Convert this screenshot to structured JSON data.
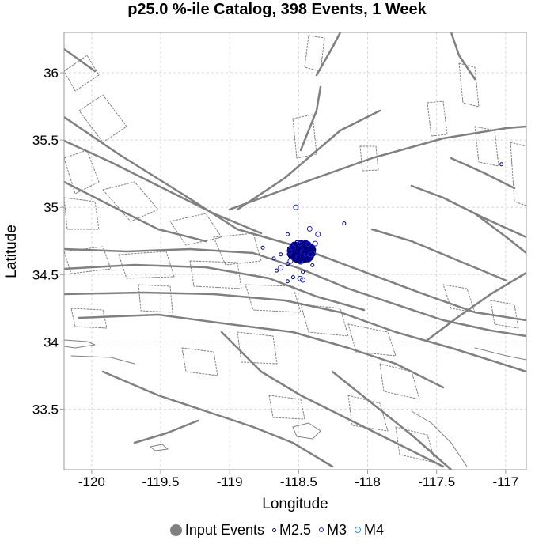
{
  "chart_data": {
    "type": "scatter",
    "title": "p25.0 %-ile Catalog, 398 Events, 1 Week",
    "xlabel": "Longitude",
    "ylabel": "Latitude",
    "xlim": [
      -120.2,
      -116.85
    ],
    "ylim": [
      33.05,
      36.3
    ],
    "xticks": [
      -120,
      -119.5,
      -119,
      -118.5,
      -118,
      -117.5,
      -117
    ],
    "xtick_labels": [
      "-120",
      "-119.5",
      "-119",
      "-118.5",
      "-118",
      "-117.5",
      "-117"
    ],
    "yticks": [
      33.5,
      34,
      34.5,
      35,
      35.5,
      36
    ],
    "ytick_labels": [
      "33.5",
      "34",
      "34.5",
      "35",
      "35.5",
      "36"
    ],
    "grid": true,
    "legend_position": "bottom",
    "legend": [
      {
        "label": "Input Events",
        "color": "#808080",
        "style": "filled"
      },
      {
        "label": "M2.5",
        "color": "#000080",
        "style": "ring-small"
      },
      {
        "label": "M3",
        "color": "#1e1ecc",
        "style": "ring-medium"
      },
      {
        "label": "M4",
        "color": "#2a8fe0",
        "style": "ring-large"
      }
    ],
    "colors": {
      "fault_trace": "#808080",
      "grid": "#d8d8d8",
      "m25": "#000080",
      "m3": "#1e1ecc",
      "m4": "#2a8fe0"
    },
    "cluster": {
      "center": [
        -118.48,
        34.67
      ],
      "count": 398
    },
    "outliers": [
      {
        "x": -118.52,
        "y": 35.0,
        "mag": 3.0
      },
      {
        "x": -118.17,
        "y": 34.88,
        "mag": 2.5
      },
      {
        "x": -117.03,
        "y": 35.32,
        "mag": 2.5
      },
      {
        "x": -118.42,
        "y": 34.84,
        "mag": 3.0
      },
      {
        "x": -118.36,
        "y": 34.8,
        "mag": 3.0
      },
      {
        "x": -118.76,
        "y": 34.7,
        "mag": 2.5
      },
      {
        "x": -118.68,
        "y": 34.62,
        "mag": 2.5
      },
      {
        "x": -118.63,
        "y": 34.55,
        "mag": 3.0
      },
      {
        "x": -118.66,
        "y": 34.53,
        "mag": 2.5
      },
      {
        "x": -118.49,
        "y": 34.47,
        "mag": 3.0
      },
      {
        "x": -118.47,
        "y": 34.46,
        "mag": 3.0
      },
      {
        "x": -118.54,
        "y": 34.48,
        "mag": 2.5
      },
      {
        "x": -118.58,
        "y": 34.45,
        "mag": 2.5
      },
      {
        "x": -118.4,
        "y": 34.57,
        "mag": 2.5
      },
      {
        "x": -118.58,
        "y": 34.58,
        "mag": 2.5
      },
      {
        "x": -118.47,
        "y": 34.52,
        "mag": 2.5
      },
      {
        "x": -118.63,
        "y": 34.65,
        "mag": 2.5
      },
      {
        "x": -118.58,
        "y": 34.8,
        "mag": 2.5
      },
      {
        "x": -118.38,
        "y": 34.73,
        "mag": 3.0
      },
      {
        "x": -118.56,
        "y": 34.6,
        "mag": 3.0
      }
    ]
  }
}
